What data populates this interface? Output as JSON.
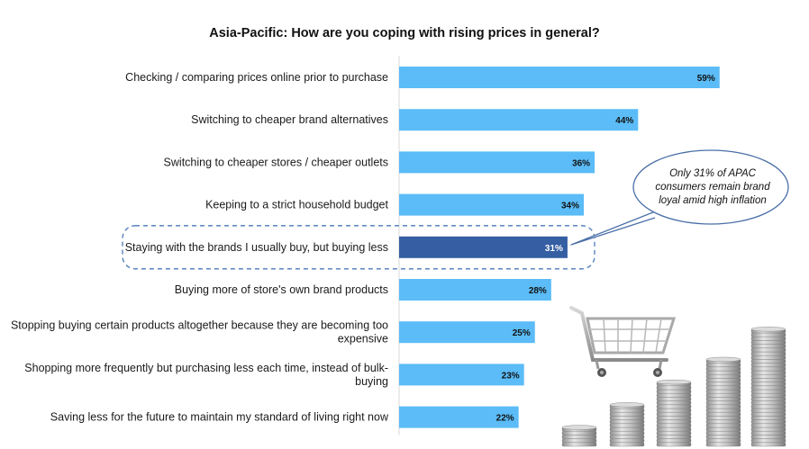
{
  "chart_data": {
    "type": "bar",
    "orientation": "horizontal",
    "title": "Asia-Pacific: How are you coping with rising prices in general?",
    "categories": [
      [
        "Checking / comparing prices online prior to purchase"
      ],
      [
        "Switching to cheaper brand alternatives"
      ],
      [
        "Switching to cheaper stores / cheaper outlets"
      ],
      [
        "Keeping to a strict household budget"
      ],
      [
        "Staying with the brands I usually buy, but buying less"
      ],
      [
        "Buying more of store's own brand products"
      ],
      [
        "Stopping buying certain products altogether because they are becoming too",
        "expensive"
      ],
      [
        "Shopping more frequently but purchasing less each time, instead of bulk-",
        "buying"
      ],
      [
        "Saving less for the future to maintain my standard of living right now"
      ]
    ],
    "values": [
      59,
      44,
      36,
      34,
      31,
      28,
      25,
      23,
      22
    ],
    "value_labels": [
      "59%",
      "44%",
      "36%",
      "34%",
      "31%",
      "28%",
      "25%",
      "23%",
      "22%"
    ],
    "unit": "%",
    "highlighted_index": 4,
    "colors": {
      "bar": "#5bbcf7",
      "highlight_bar": "#355ea3",
      "axis": "#d9d9d9",
      "highlight_box": "#4a7ab8"
    },
    "grid": false,
    "legend": "none"
  },
  "callout": {
    "text": "Only 31% of APAC consumers remain brand loyal amid high inflation",
    "border_color": "#4a6fa8"
  },
  "illustration": {
    "icons": [
      "shopping-cart-icon",
      "coin-stacks-icon"
    ]
  }
}
